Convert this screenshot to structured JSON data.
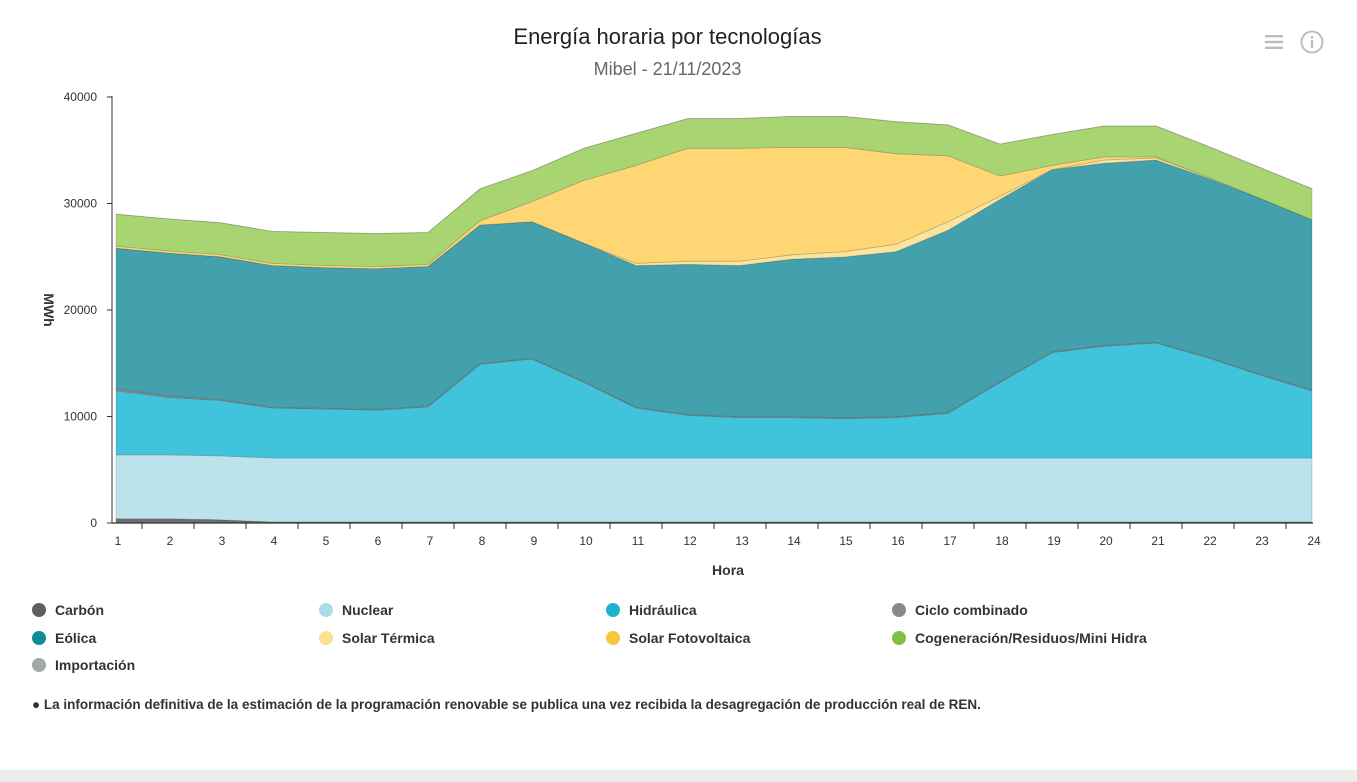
{
  "header": {
    "title": "Energía horaria por tecnologías",
    "subtitle": "Mibel - 21/11/2023",
    "menu_icon": "hamburger-menu-icon",
    "info_icon": "info-icon"
  },
  "chart_data": {
    "type": "area",
    "stacked": true,
    "title": "Energía horaria por tecnologías",
    "subtitle": "Mibel - 21/11/2023",
    "xlabel": "Hora",
    "ylabel": "MWh",
    "ylim": [
      0,
      40000
    ],
    "yticks": [
      "0",
      "10000",
      "20000",
      "30000",
      "40000"
    ],
    "categories": [
      "1",
      "2",
      "3",
      "4",
      "5",
      "6",
      "7",
      "8",
      "9",
      "10",
      "11",
      "12",
      "13",
      "14",
      "15",
      "16",
      "17",
      "18",
      "19",
      "20",
      "21",
      "22",
      "23",
      "24"
    ],
    "grid": false,
    "legend_position": "bottom",
    "series": [
      {
        "name": "Carbón",
        "color": "#6e6e6e",
        "values": [
          400,
          400,
          300,
          100,
          100,
          100,
          100,
          100,
          100,
          100,
          100,
          100,
          100,
          100,
          100,
          100,
          100,
          100,
          100,
          100,
          100,
          100,
          100,
          100
        ]
      },
      {
        "name": "Nuclear",
        "color": "#bce3ec",
        "values": [
          6000,
          6000,
          6000,
          6000,
          6000,
          6000,
          6000,
          6000,
          6000,
          6000,
          6000,
          6000,
          6000,
          6000,
          6000,
          6000,
          6000,
          6000,
          6000,
          6000,
          6000,
          6000,
          6000,
          6000
        ]
      },
      {
        "name": "Hidráulica",
        "color": "#3fc4dc",
        "values": [
          6000,
          5400,
          5200,
          4700,
          4600,
          4500,
          4800,
          8800,
          9300,
          7100,
          4700,
          4000,
          3800,
          3800,
          3700,
          3800,
          4200,
          7100,
          9900,
          10500,
          10800,
          9400,
          7800,
          6300
        ]
      },
      {
        "name": "Ciclo combinado",
        "color": "#8b8b8b",
        "values": [
          200,
          150,
          100,
          80,
          80,
          80,
          80,
          80,
          80,
          80,
          80,
          80,
          80,
          80,
          80,
          80,
          80,
          80,
          80,
          80,
          80,
          80,
          80,
          80
        ]
      },
      {
        "name": "Eólica",
        "color": "#43a1ad",
        "values": [
          13200,
          13400,
          13400,
          13300,
          13200,
          13200,
          13100,
          13000,
          12800,
          13000,
          13300,
          14100,
          14200,
          14800,
          15100,
          15500,
          17100,
          17100,
          17100,
          17100,
          17100,
          16800,
          16500,
          16000
        ]
      },
      {
        "name": "Solar Térmica",
        "color": "#fce59a",
        "values": [
          0,
          0,
          0,
          0,
          0,
          0,
          0,
          0,
          0,
          0,
          200,
          300,
          400,
          400,
          500,
          700,
          800,
          300,
          0,
          300,
          200,
          100,
          0,
          0
        ]
      },
      {
        "name": "Solar Fotovoltaica",
        "color": "#fed673",
        "values": [
          200,
          200,
          200,
          200,
          200,
          200,
          200,
          400,
          1900,
          5900,
          9200,
          10600,
          10600,
          10100,
          9800,
          8500,
          6200,
          1900,
          400,
          300,
          100,
          0,
          0,
          0
        ]
      },
      {
        "name": "Cogeneración/Residuos/Mini Hidra",
        "color": "#a8d572",
        "values": [
          3000,
          3000,
          3000,
          3000,
          3100,
          3100,
          3000,
          3000,
          2900,
          3000,
          3000,
          2800,
          2800,
          2900,
          2900,
          3000,
          2900,
          3000,
          2900,
          2900,
          2900,
          2900,
          2900,
          2900
        ]
      },
      {
        "name": "Importación",
        "color": "#a3acad",
        "values": [
          0,
          0,
          0,
          0,
          0,
          0,
          0,
          0,
          0,
          0,
          0,
          0,
          0,
          0,
          0,
          0,
          0,
          0,
          0,
          0,
          0,
          0,
          0,
          0
        ]
      }
    ]
  },
  "legend": {
    "items": [
      {
        "label": "Carbón",
        "color": "#5f5f5f"
      },
      {
        "label": "Nuclear",
        "color": "#a9dde8"
      },
      {
        "label": "Hidráulica",
        "color": "#1fb2cf"
      },
      {
        "label": "Ciclo combinado",
        "color": "#8a8a8a"
      },
      {
        "label": "Eólica",
        "color": "#0f8b93"
      },
      {
        "label": "Solar Térmica",
        "color": "#fbe290"
      },
      {
        "label": "Solar Fotovoltaica",
        "color": "#f8c63d"
      },
      {
        "label": "Cogeneración/Residuos/Mini Hidra",
        "color": "#7fc241"
      },
      {
        "label": "Importación",
        "color": "#a1a9aa"
      }
    ]
  },
  "footnote": "● La información definitiva de la estimación de la programación renovable se publica una vez recibida la desagregación de producción real de REN."
}
